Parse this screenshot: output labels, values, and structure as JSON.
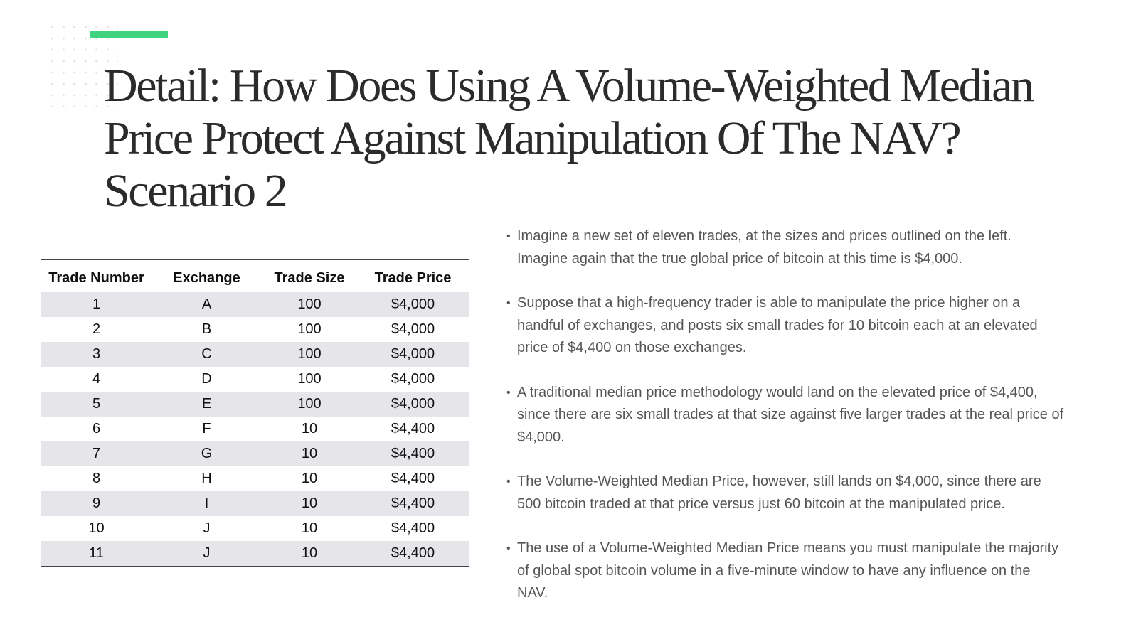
{
  "slide": {
    "title_lines": [
      "Detail: How Does Using A Volume-Weighted Median",
      "Price Protect Against Manipulation Of The NAV?",
      "Scenario 2"
    ]
  },
  "table": {
    "headers": [
      "Trade Number",
      "Exchange",
      "Trade Size",
      "Trade Price"
    ],
    "rows": [
      [
        "1",
        "A",
        "100",
        "$4,000"
      ],
      [
        "2",
        "B",
        "100",
        "$4,000"
      ],
      [
        "3",
        "C",
        "100",
        "$4,000"
      ],
      [
        "4",
        "D",
        "100",
        "$4,000"
      ],
      [
        "5",
        "E",
        "100",
        "$4,000"
      ],
      [
        "6",
        "F",
        "10",
        "$4,400"
      ],
      [
        "7",
        "G",
        "10",
        "$4,400"
      ],
      [
        "8",
        "H",
        "10",
        "$4,400"
      ],
      [
        "9",
        "I",
        "10",
        "$4,400"
      ],
      [
        "10",
        "J",
        "10",
        "$4,400"
      ],
      [
        "11",
        "J",
        "10",
        "$4,400"
      ]
    ]
  },
  "bullets": [
    {
      "marker": "•",
      "lines": [
        "Imagine a new set of eleven trades, at the sizes and prices outlined on the left.",
        "Imagine again that the true global price of bitcoin at this time is $4,000."
      ]
    },
    {
      "marker": "•",
      "lines": [
        "Suppose that a high-frequency trader is able to manipulate the price higher on a",
        "handful of exchanges, and posts six small trades for 10 bitcoin each at an elevated",
        "price of $4,400 on those exchanges."
      ]
    },
    {
      "marker": "•",
      "lines": [
        "A traditional median price methodology would land on the elevated price of $4,400,",
        "since there are six small trades at that size against five larger trades at the real price of",
        "$4,000."
      ]
    },
    {
      "marker": "•",
      "lines": [
        "The Volume-Weighted Median Price, however, still lands on $4,000, since there are",
        "500 bitcoin traded at that price versus just 60 bitcoin at the manipulated price."
      ]
    },
    {
      "marker": "•",
      "lines": [
        "The use of a Volume-Weighted Median Price means you must manipulate the majority",
        "of global spot bitcoin volume in a five-minute window to have any influence on the",
        "NAV."
      ]
    }
  ],
  "colors": {
    "accent": "#3fd37f",
    "title_text": "#2b2b2b",
    "body_text": "#555555",
    "row_stripe": "#e6e6ea"
  }
}
